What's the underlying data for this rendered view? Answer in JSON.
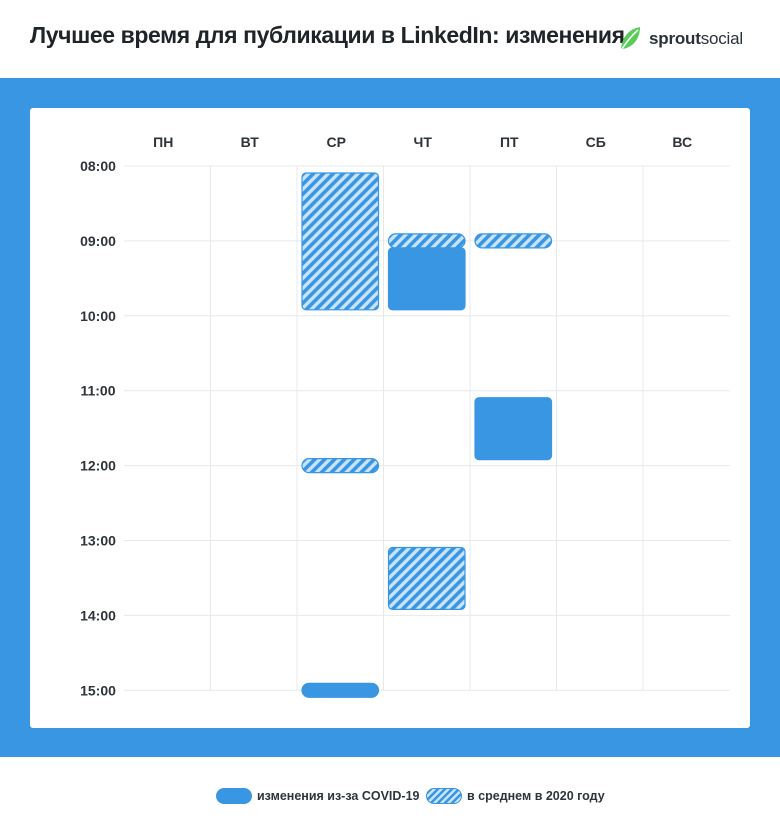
{
  "header": {
    "title": "Лучшее время для публикации в LinkedIn: изменения",
    "brand": {
      "name_bold": "sprout",
      "name_regular": "social",
      "logo_icon": "sprout-leaf-icon",
      "logo_color": "#59cb59"
    }
  },
  "colors": {
    "band": "#3996e3",
    "solid_block": "#3996e3",
    "hatch_light": "#c9e3f8",
    "grid": "#e6e9ec",
    "text": "#2e343a"
  },
  "chart_data": {
    "type": "heatmap",
    "title": "Лучшее время для публикации в LinkedIn: изменения",
    "x_categories": [
      "ПН",
      "ВТ",
      "СР",
      "ЧТ",
      "ПТ",
      "СБ",
      "ВС"
    ],
    "y_ticks": [
      "08:00",
      "09:00",
      "10:00",
      "11:00",
      "12:00",
      "13:00",
      "14:00",
      "15:00"
    ],
    "y_range_hours": [
      8,
      15
    ],
    "grid": true,
    "legend_position": "bottom",
    "series": [
      {
        "name": "изменения из-за COVID-19",
        "style": "solid",
        "blocks": [
          {
            "day": "ЧТ",
            "start": "09:00",
            "end": "10:00"
          },
          {
            "day": "ПТ",
            "start": "11:00",
            "end": "12:00"
          },
          {
            "day": "СР",
            "start": "15:00",
            "end": "15:00"
          }
        ]
      },
      {
        "name": "в среднем в 2020 году",
        "style": "hatched",
        "blocks": [
          {
            "day": "СР",
            "start": "08:00",
            "end": "10:00"
          },
          {
            "day": "ЧТ",
            "start": "09:00",
            "end": "09:00"
          },
          {
            "day": "ПТ",
            "start": "09:00",
            "end": "09:00"
          },
          {
            "day": "СР",
            "start": "12:00",
            "end": "12:00"
          },
          {
            "day": "ЧТ",
            "start": "13:00",
            "end": "14:00"
          }
        ]
      }
    ]
  },
  "legend": [
    {
      "label": "изменения из-за COVID-19",
      "style": "solid"
    },
    {
      "label": "в среднем в 2020 году",
      "style": "hatched"
    }
  ]
}
